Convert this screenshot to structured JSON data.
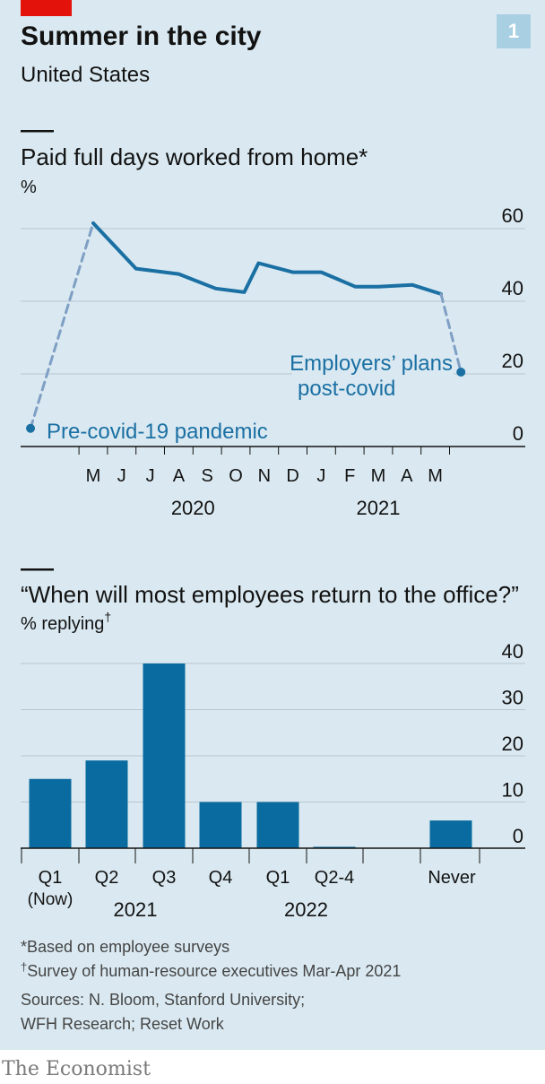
{
  "header": {
    "title": "Summer in the city",
    "subtitle": "United States",
    "badge": "1"
  },
  "colors": {
    "background": "#dae9f1",
    "accent": "#e3120b",
    "series": "#1a6fa3",
    "bar": "#0a6ba0",
    "grid": "#b8c6cf",
    "text": "#121212"
  },
  "chart_data": [
    {
      "type": "line",
      "title": "Paid full days worked from home*",
      "ylabel": "%",
      "ylim": [
        0,
        60
      ],
      "yticks": [
        0,
        20,
        40,
        60
      ],
      "x_ticks": [
        "M",
        "J",
        "J",
        "A",
        "S",
        "O",
        "N",
        "D",
        "J",
        "F",
        "M",
        "A",
        "M"
      ],
      "x_groups": [
        {
          "label": "2020",
          "span": [
            0,
            7
          ]
        },
        {
          "label": "2021",
          "span": [
            8,
            12
          ]
        }
      ],
      "series": [
        {
          "style": "solid",
          "points": [
            {
              "x": 0,
              "y": 61.5
            },
            {
              "x": 1.5,
              "y": 49
            },
            {
              "x": 3,
              "y": 47.5
            },
            {
              "x": 4.3,
              "y": 43.5
            },
            {
              "x": 5.3,
              "y": 42.5
            },
            {
              "x": 5.8,
              "y": 50.5
            },
            {
              "x": 7,
              "y": 48
            },
            {
              "x": 8,
              "y": 48
            },
            {
              "x": 9.2,
              "y": 44
            },
            {
              "x": 10,
              "y": 44
            },
            {
              "x": 11.2,
              "y": 44.5
            },
            {
              "x": 12.2,
              "y": 42
            }
          ]
        },
        {
          "style": "dashed",
          "points": [
            {
              "x": -2.2,
              "y": 5
            },
            {
              "x": 0,
              "y": 61.5
            }
          ]
        },
        {
          "style": "dashed",
          "points": [
            {
              "x": 12.2,
              "y": 42
            },
            {
              "x": 12.9,
              "y": 20.5
            }
          ]
        }
      ],
      "annotations": [
        {
          "text": "Pre-covid-19 pandemic",
          "x": -2.2,
          "y": 5
        },
        {
          "text": "Employers’ plans",
          "x": 12.9,
          "y": 20.5
        },
        {
          "text": "post-covid",
          "x": 12.9,
          "y": 20.5
        }
      ]
    },
    {
      "type": "bar",
      "title": "“When will most employees return to the office?”",
      "ylabel": "% replying",
      "ylabel_mark": "†",
      "ylim": [
        0,
        40
      ],
      "yticks": [
        0,
        10,
        20,
        30,
        40
      ],
      "categories": [
        "Q1",
        "Q2",
        "Q3",
        "Q4",
        "Q1",
        "Q2-4",
        "Never"
      ],
      "category_notes": [
        "(Now)",
        "",
        "",
        "",
        "",
        "",
        ""
      ],
      "values": [
        15,
        19,
        40,
        10,
        10,
        0.3,
        6
      ],
      "x_groups": [
        {
          "label": "2021",
          "span": [
            0,
            3
          ]
        },
        {
          "label": "2022",
          "span": [
            4,
            5
          ]
        }
      ]
    }
  ],
  "footnotes": {
    "note1": "*Based on employee surveys",
    "note2_mark": "†",
    "note2": "Survey of human-resource executives Mar-Apr 2021",
    "sources1": "Sources: N. Bloom, Stanford University;",
    "sources2": "WFH Research; Reset Work"
  },
  "brand": "The Economist"
}
